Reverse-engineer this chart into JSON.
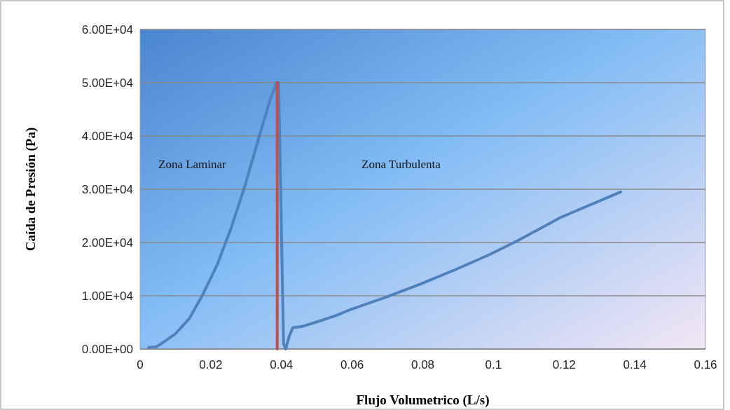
{
  "chart_data": {
    "type": "line",
    "xlabel": "Flujo Volumetrico (L/s)",
    "ylabel": "Caída de Presión (Pa)",
    "xlim": [
      0,
      0.16
    ],
    "xticks": [
      0,
      0.02,
      0.04,
      0.06,
      0.08,
      0.1,
      0.12,
      0.14,
      0.16
    ],
    "ylim": [
      0,
      60000
    ],
    "yticks": [
      {
        "value": 0,
        "label": "0.00E+00"
      },
      {
        "value": 10000,
        "label": "1.00E+04"
      },
      {
        "value": 20000,
        "label": "2.00E+04"
      },
      {
        "value": 30000,
        "label": "3.00E+04"
      },
      {
        "value": 40000,
        "label": "4.00E+04"
      },
      {
        "value": 50000,
        "label": "5.00E+04"
      },
      {
        "value": 60000,
        "label": "6.00E+04"
      }
    ],
    "grid": "y",
    "series": [
      {
        "color": "#4f81bd",
        "x": [
          0.0024,
          0.0045,
          0.006,
          0.0099,
          0.0139,
          0.0178,
          0.0218,
          0.0258,
          0.0297,
          0.0337,
          0.0366,
          0.0386,
          0.0392,
          0.0406,
          0.0412,
          0.0422,
          0.0432,
          0.0456,
          0.0496,
          0.0555,
          0.0595,
          0.0694,
          0.0793,
          0.0892,
          0.0991,
          0.107,
          0.119,
          0.136
        ],
        "values": [
          300,
          400,
          1000,
          2800,
          5700,
          10300,
          15800,
          22800,
          30700,
          39900,
          46400,
          50000,
          50000,
          1000,
          0,
          2400,
          4000,
          4200,
          5000,
          6300,
          7400,
          9700,
          12200,
          14900,
          17800,
          20400,
          24700,
          29500
        ]
      },
      {
        "color": "#c0504d",
        "x": [
          0.0388,
          0.0388
        ],
        "values": [
          0,
          50000
        ]
      }
    ],
    "annotations": [
      "Zona Laminar",
      "Zona Turbulenta"
    ]
  }
}
